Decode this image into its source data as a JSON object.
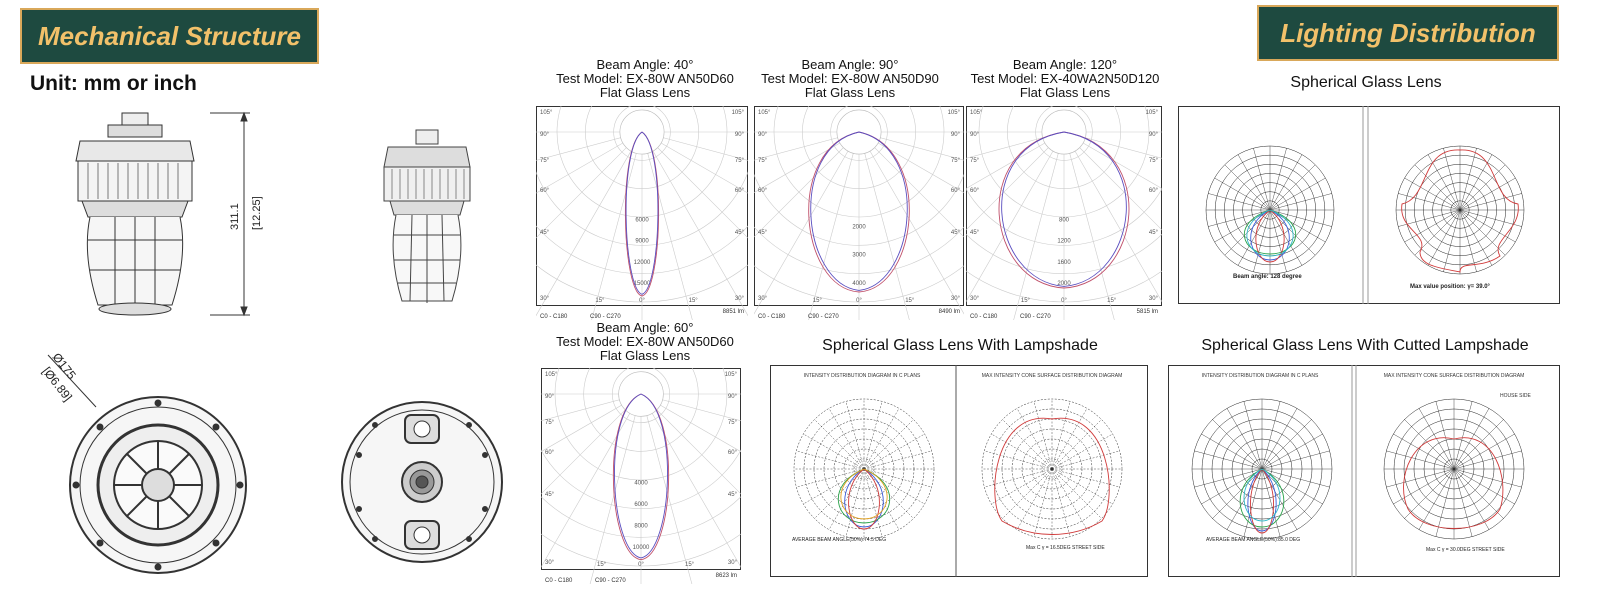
{
  "banners": {
    "left": "Mechanical Structure",
    "right": "Lighting Distribution"
  },
  "unit_label": "Unit: mm or inch",
  "dims": {
    "height_mm": "311.1",
    "height_in": "[12.25]",
    "dia_mm": "Ø175",
    "dia_in": "[Ø6.89]"
  },
  "polar_flat": [
    {
      "line1": "Beam Angle: 40°",
      "line2": "Test Model: EX-80W AN50D60",
      "line3": "Flat Glass Lens",
      "lumens": "8851 lm",
      "rings": [
        "6000",
        "9000",
        "12000",
        "15000"
      ],
      "legend": [
        "C0 - C180",
        "C90 - C270"
      ]
    },
    {
      "line1": "Beam Angle: 90°",
      "line2": "Test Model: EX-80W AN50D90",
      "line3": "Flat Glass Lens",
      "lumens": "8490 lm",
      "rings": [
        "2000",
        "3000",
        "4000"
      ],
      "legend": [
        "C0 - C180",
        "C90 - C270"
      ]
    },
    {
      "line1": "Beam Angle: 120°",
      "line2": "Test Model: EX-40WA2N50D120",
      "line3": "Flat Glass Lens",
      "lumens": "5815 lm",
      "rings": [
        "800",
        "1200",
        "1600",
        "2000"
      ],
      "legend": [
        "C0 - C180",
        "C90 - C270"
      ]
    },
    {
      "line1": "Beam Angle: 60°",
      "line2": "Test Model: EX-80W AN50D60",
      "line3": "Flat Glass Lens",
      "lumens": "8623 lm",
      "rings": [
        "4000",
        "6000",
        "8000",
        "10000"
      ],
      "legend": [
        "C0 - C180",
        "C90 - C270"
      ]
    }
  ],
  "polar_angles": [
    "105°",
    "90°",
    "75°",
    "60°",
    "45°",
    "30°",
    "15°",
    "0°"
  ],
  "spherical": {
    "title": "Spherical Glass Lens",
    "beam": "Beam angle: 128 degree",
    "maxpos": "Max value position:  γ= 39.0°"
  },
  "lampshade": {
    "title": "Spherical Glass Lens With Lampshade",
    "left_head": "INTENSITY DISTRIBUTION DIAGRAM IN C PLANS",
    "right_head": "MAX INTENSITY CONE SURFACE DISTRIBUTION DIAGRAM",
    "avg": "AVERAGE BEAM ANGLE(50%):74.5 DEG",
    "max": "Max C γ = 16.5DEG STREET SIDE"
  },
  "cutted": {
    "title": "Spherical Glass Lens With Cutted Lampshade",
    "left_head": "INTENSITY DISTRIBUTION DIAGRAM IN C PLANS",
    "right_head": "MAX INTENSITY CONE SURFACE DISTRIBUTION DIAGRAM",
    "avg": "AVERAGE BEAM ANGLE(50%):85.0 DEG",
    "max": "Max C γ = 30.0DEG STREET SIDE",
    "side": "HOUSE SIDE"
  },
  "colors": {
    "banner_bg": "#1e4a40",
    "banner_text": "#f2c16a",
    "banner_border": "#d9a85a",
    "c0": "#c0506a",
    "c90": "#5a4ec0"
  }
}
